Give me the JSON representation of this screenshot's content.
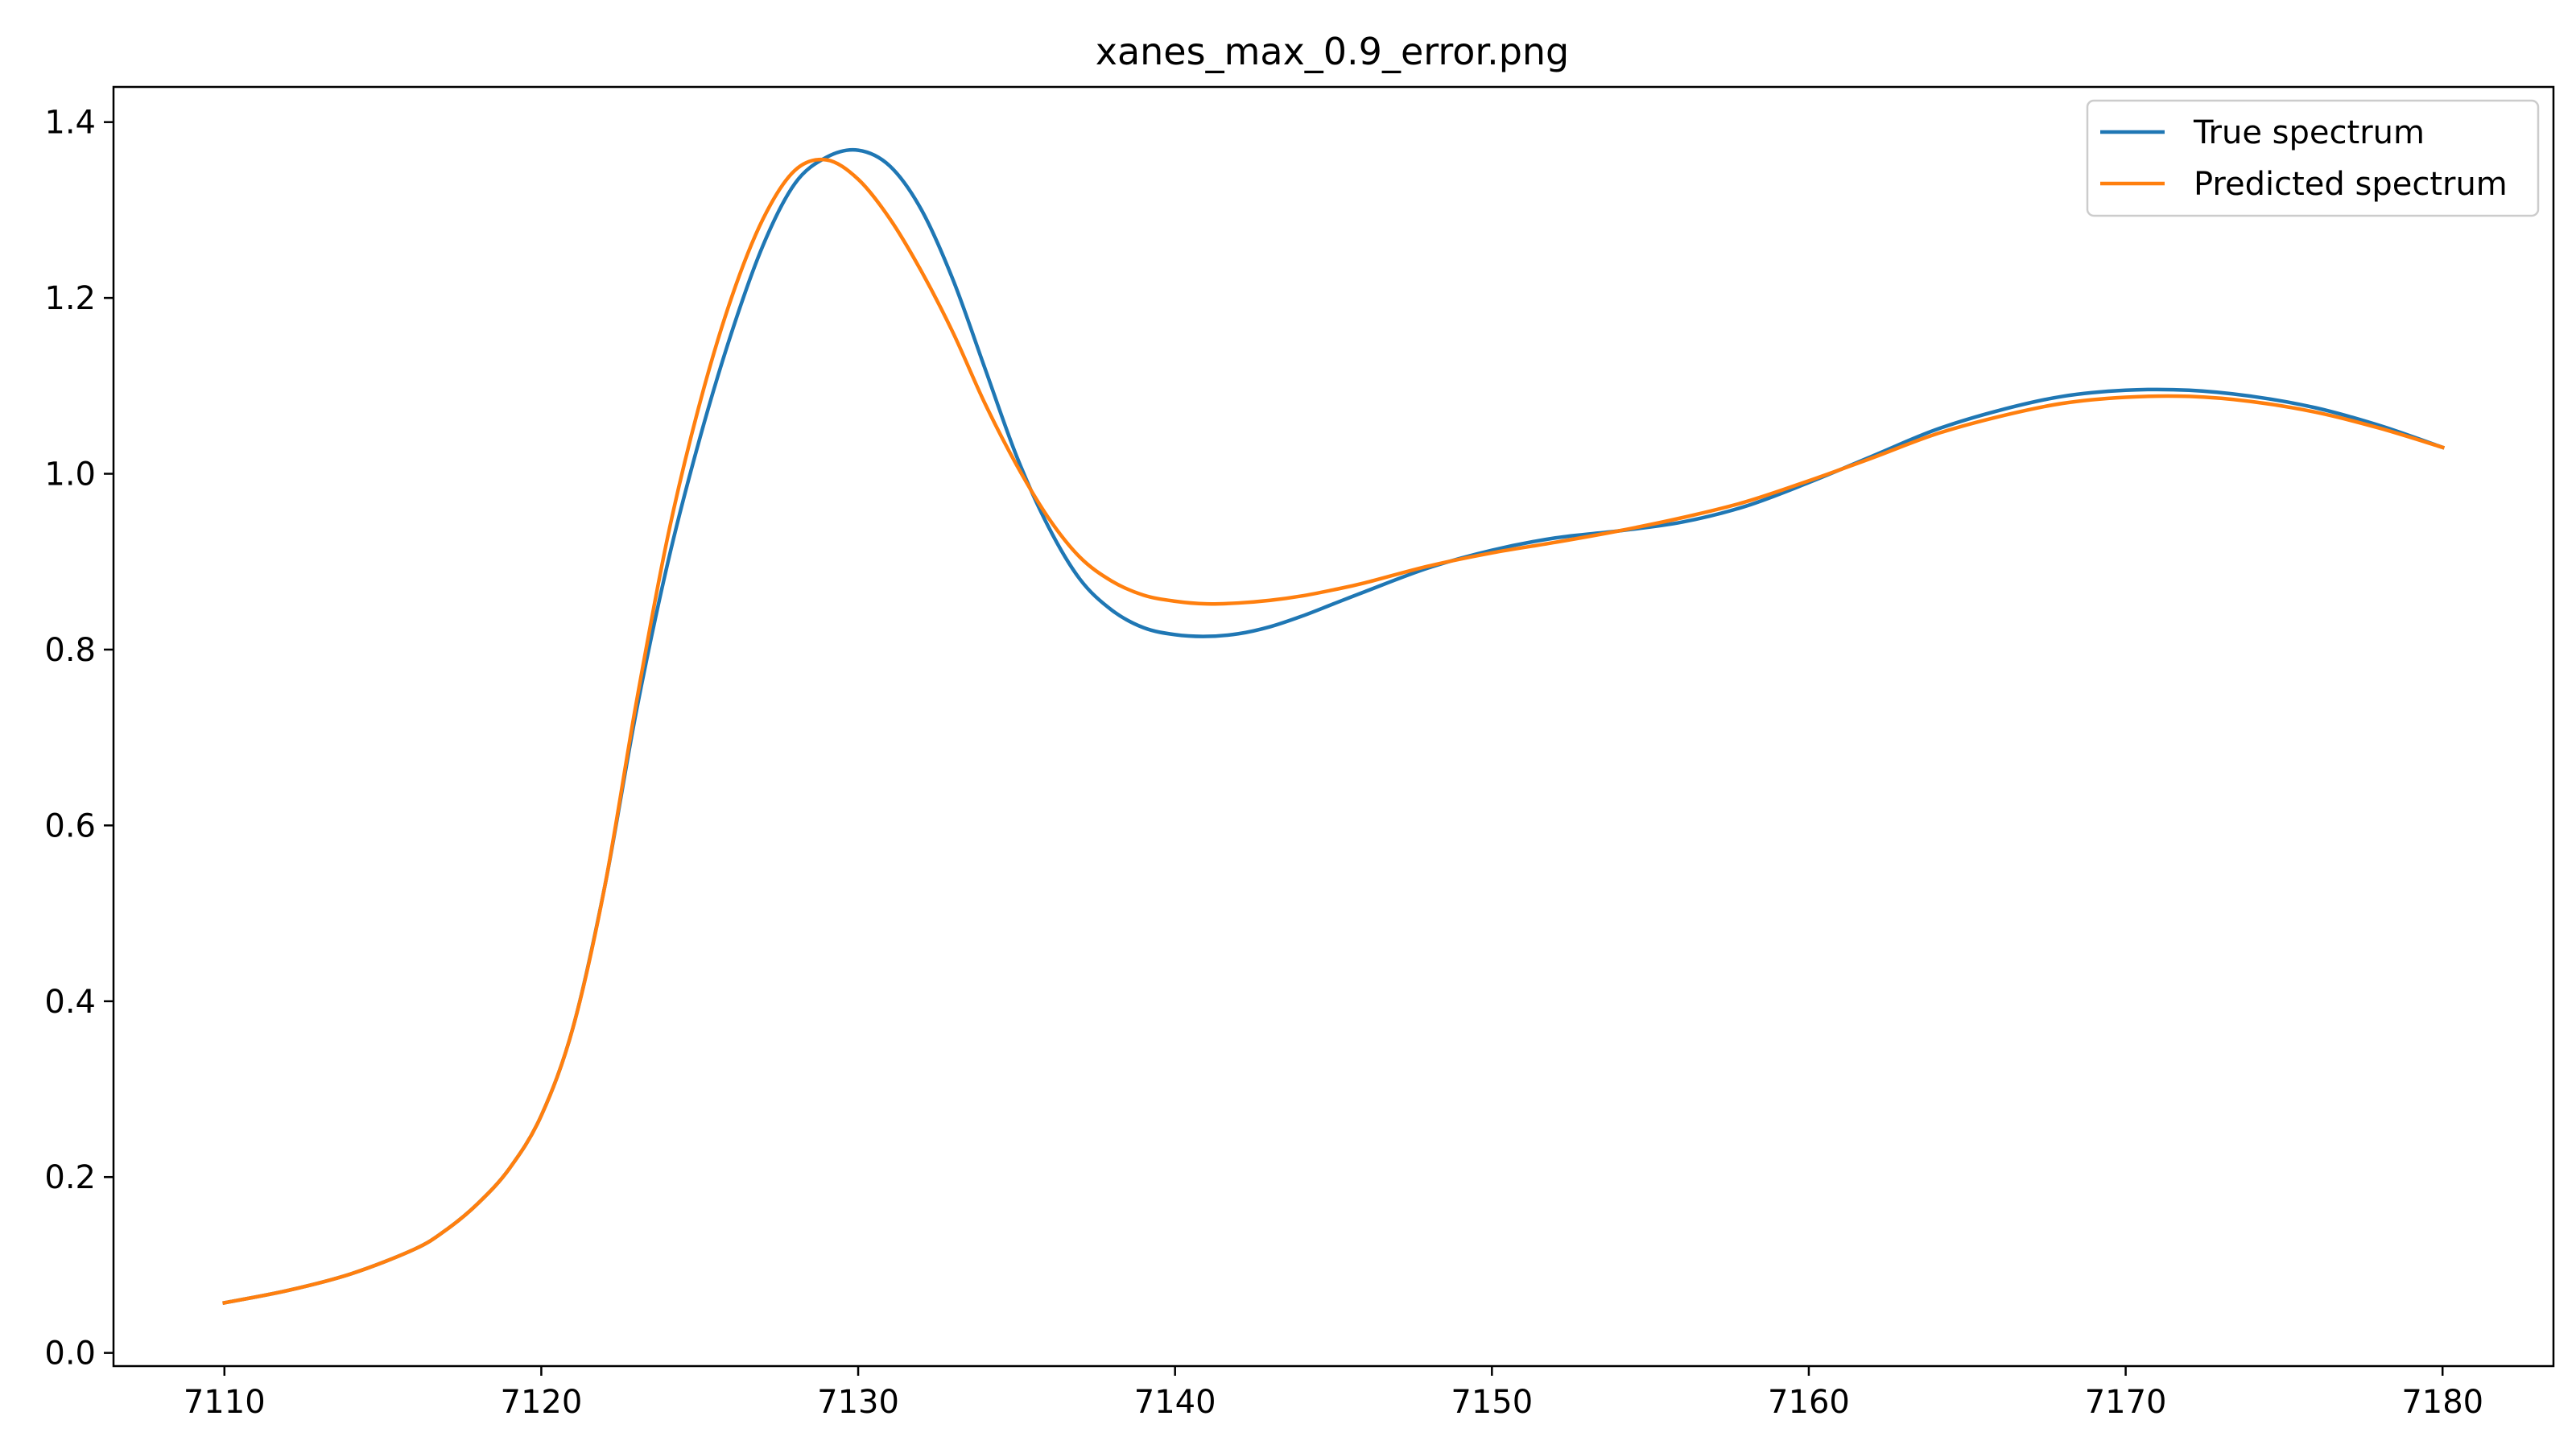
{
  "chart_data": {
    "type": "line",
    "title": "xanes_max_0.9_error.png",
    "xlabel": "",
    "ylabel": "",
    "xlim": [
      7106.5,
      7183.5
    ],
    "ylim": [
      -0.015,
      1.44
    ],
    "xticks": [
      7110,
      7120,
      7130,
      7140,
      7150,
      7160,
      7170,
      7180
    ],
    "yticks": [
      0.0,
      0.2,
      0.4,
      0.6,
      0.8,
      1.0,
      1.2,
      1.4
    ],
    "ytick_labels": [
      "0.0",
      "0.2",
      "0.4",
      "0.6",
      "0.8",
      "1.0",
      "1.2",
      "1.4"
    ],
    "grid": false,
    "legend_position": "top-right",
    "series": [
      {
        "name": "True spectrum",
        "color": "#1f77b4",
        "x": [
          7110,
          7112,
          7114,
          7116,
          7117,
          7118,
          7119,
          7120,
          7121,
          7122,
          7123,
          7124,
          7125,
          7126,
          7127,
          7128,
          7129,
          7130,
          7131,
          7132,
          7133,
          7134,
          7135,
          7136,
          7137,
          7138,
          7139,
          7140,
          7141,
          7142,
          7143,
          7144,
          7145,
          7146,
          7148,
          7150,
          7152,
          7154,
          7156,
          7158,
          7160,
          7162,
          7164,
          7166,
          7168,
          7170,
          7172,
          7174,
          7176,
          7178,
          7180
        ],
        "y": [
          0.057,
          0.071,
          0.09,
          0.118,
          0.14,
          0.17,
          0.21,
          0.27,
          0.37,
          0.53,
          0.73,
          0.9,
          1.04,
          1.16,
          1.26,
          1.33,
          1.36,
          1.368,
          1.35,
          1.3,
          1.22,
          1.12,
          1.02,
          0.94,
          0.88,
          0.845,
          0.825,
          0.817,
          0.815,
          0.818,
          0.826,
          0.838,
          0.852,
          0.866,
          0.893,
          0.913,
          0.927,
          0.935,
          0.945,
          0.963,
          0.99,
          1.02,
          1.05,
          1.072,
          1.088,
          1.095,
          1.095,
          1.088,
          1.075,
          1.055,
          1.03
        ]
      },
      {
        "name": "Predicted spectrum",
        "color": "#ff7f0e",
        "x": [
          7110,
          7112,
          7114,
          7116,
          7117,
          7118,
          7119,
          7120,
          7121,
          7122,
          7123,
          7124,
          7125,
          7126,
          7127,
          7128,
          7129,
          7130,
          7131,
          7132,
          7133,
          7134,
          7135,
          7136,
          7137,
          7138,
          7139,
          7140,
          7141,
          7142,
          7143,
          7144,
          7145,
          7146,
          7148,
          7150,
          7152,
          7154,
          7156,
          7158,
          7160,
          7162,
          7164,
          7166,
          7168,
          7170,
          7172,
          7174,
          7176,
          7178,
          7180
        ],
        "y": [
          0.057,
          0.071,
          0.09,
          0.118,
          0.14,
          0.17,
          0.21,
          0.27,
          0.37,
          0.53,
          0.74,
          0.93,
          1.08,
          1.2,
          1.29,
          1.345,
          1.357,
          1.335,
          1.29,
          1.23,
          1.16,
          1.08,
          1.01,
          0.95,
          0.905,
          0.878,
          0.862,
          0.855,
          0.852,
          0.853,
          0.856,
          0.861,
          0.868,
          0.876,
          0.895,
          0.91,
          0.922,
          0.935,
          0.95,
          0.968,
          0.992,
          1.018,
          1.045,
          1.065,
          1.08,
          1.087,
          1.088,
          1.082,
          1.07,
          1.052,
          1.03
        ]
      }
    ]
  }
}
